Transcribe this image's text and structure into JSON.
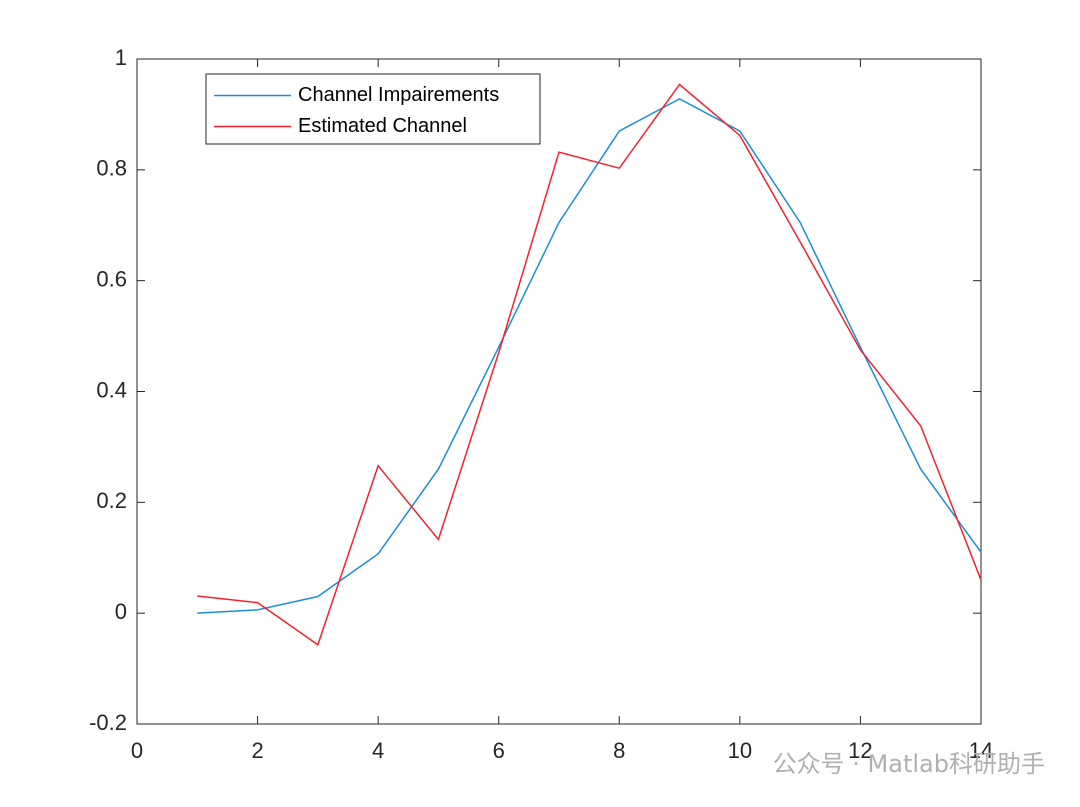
{
  "chart_data": {
    "type": "line",
    "x": [
      1,
      2,
      3,
      4,
      5,
      6,
      7,
      8,
      9,
      10,
      11,
      12,
      13,
      14
    ],
    "series": [
      {
        "name": "Channel Impairements",
        "color": "#1a8fd8",
        "values": [
          0,
          0.006,
          0.03,
          0.107,
          0.26,
          0.48,
          0.705,
          0.87,
          0.928,
          0.87,
          0.705,
          0.48,
          0.26,
          0.11
        ]
      },
      {
        "name": "Estimated Channel",
        "color": "#f5212f",
        "values": [
          0.031,
          0.019,
          -0.057,
          0.266,
          0.133,
          0.47,
          0.832,
          0.803,
          0.954,
          0.862,
          0.67,
          0.475,
          0.338,
          0.06
        ]
      }
    ],
    "xlim": [
      0,
      14
    ],
    "xticks": [
      0,
      2,
      4,
      6,
      8,
      10,
      12,
      14
    ],
    "ylim": [
      -0.2,
      1
    ],
    "yticks": [
      -0.2,
      0,
      0.2,
      0.4,
      0.6,
      0.8,
      1
    ],
    "grid": false,
    "legend": "northwest"
  },
  "watermark": "公众号 · Matlab科研助手"
}
